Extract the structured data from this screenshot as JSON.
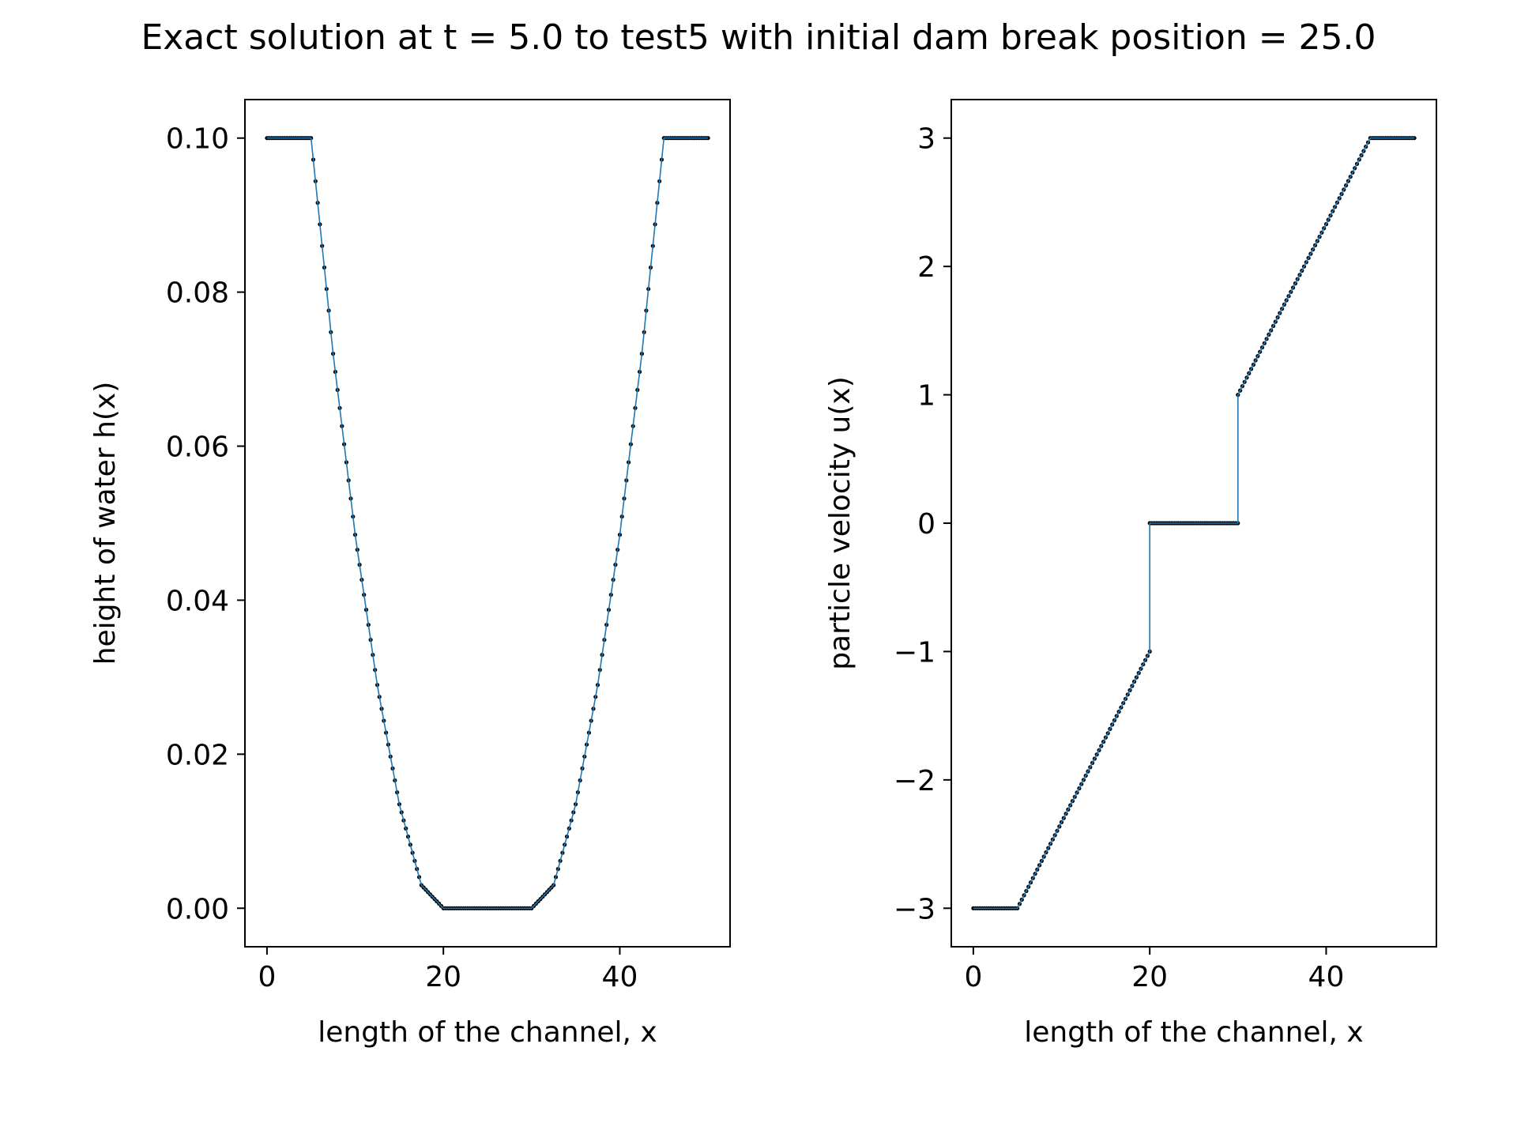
{
  "title": "Exact solution at t = 5.0 to test5 with initial dam break position = 25.0",
  "chart_data": [
    {
      "type": "line",
      "xlabel": "length of the channel, x",
      "ylabel": "height of water h(x)",
      "xlim": [
        -2.5,
        52.5
      ],
      "ylim": [
        -0.005,
        0.105
      ],
      "xticks": [
        0,
        20,
        40
      ],
      "xtick_labels": [
        "0",
        "20",
        "40"
      ],
      "yticks": [
        0.0,
        0.02,
        0.04,
        0.06,
        0.08,
        0.1
      ],
      "ytick_labels": [
        "0.00",
        "0.02",
        "0.04",
        "0.06",
        "0.08",
        "0.10"
      ],
      "grid": false,
      "line_color": "#1f77b4",
      "marker_color": "#000000",
      "x": [
        0,
        2.5,
        5,
        7.5,
        10,
        12.5,
        15,
        17.5,
        20,
        22.5,
        25,
        27.5,
        30,
        32.5,
        35,
        37.5,
        40,
        42.5,
        45,
        47.5,
        50
      ],
      "y": [
        0.1,
        0.1,
        0.1,
        0.072,
        0.0485,
        0.029,
        0.0135,
        0.003,
        0.0,
        0.0,
        0.0,
        0.0,
        0.0,
        0.003,
        0.0135,
        0.029,
        0.0485,
        0.072,
        0.1,
        0.1,
        0.1
      ]
    },
    {
      "type": "line",
      "xlabel": "length of the channel, x",
      "ylabel": "particle velocity u(x)",
      "xlim": [
        -2.5,
        52.5
      ],
      "ylim": [
        -3.3,
        3.3
      ],
      "xticks": [
        0,
        20,
        40
      ],
      "xtick_labels": [
        "0",
        "20",
        "40"
      ],
      "yticks": [
        -3,
        -2,
        -1,
        0,
        1,
        2,
        3
      ],
      "ytick_labels": [
        "−3",
        "−2",
        "−1",
        "0",
        "1",
        "2",
        "3"
      ],
      "grid": false,
      "line_color": "#1f77b4",
      "marker_color": "#000000",
      "x": [
        0,
        2.5,
        5,
        10,
        15,
        20,
        20,
        22.5,
        25,
        27.5,
        30,
        30,
        35,
        40,
        45,
        47.5,
        50
      ],
      "y": [
        -3,
        -3,
        -3,
        -2.33,
        -1.67,
        -1.0,
        0,
        0,
        0,
        0,
        0,
        1.0,
        1.67,
        2.33,
        3,
        3,
        3
      ]
    }
  ]
}
